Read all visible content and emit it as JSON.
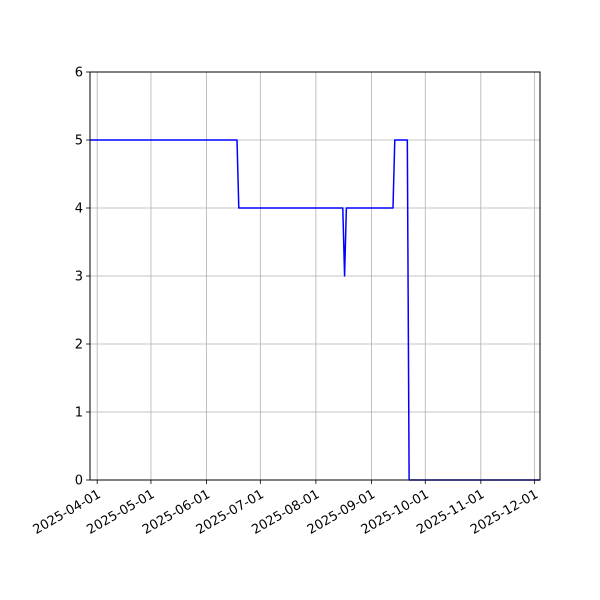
{
  "chart_data": {
    "type": "line",
    "title": "",
    "xlabel": "",
    "ylabel": "",
    "x_type": "date",
    "xlim": [
      "2025-03-28",
      "2025-12-04"
    ],
    "ylim": [
      0,
      6
    ],
    "grid": true,
    "x_ticks": [
      "2025-04-01",
      "2025-05-01",
      "2025-06-01",
      "2025-07-01",
      "2025-08-01",
      "2025-09-01",
      "2025-10-01",
      "2025-11-01",
      "2025-12-01"
    ],
    "y_ticks": [
      "0",
      "1",
      "2",
      "3",
      "4",
      "5",
      "6"
    ],
    "series": [
      {
        "color": "#0000ff",
        "x": [
          "2025-03-28",
          "2025-06-18",
          "2025-06-19",
          "2025-08-16",
          "2025-08-17",
          "2025-08-18",
          "2025-09-13",
          "2025-09-14",
          "2025-09-21",
          "2025-09-22",
          "2025-12-04"
        ],
        "y": [
          5,
          5,
          4,
          4,
          3,
          4,
          4,
          5,
          5,
          0,
          0
        ]
      }
    ]
  }
}
